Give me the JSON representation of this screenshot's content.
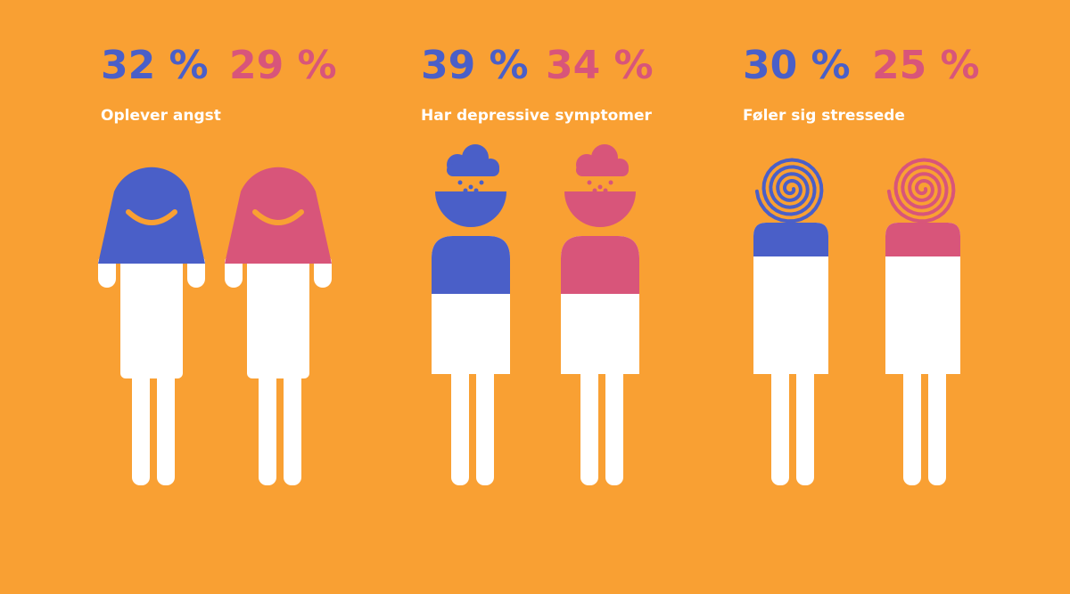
{
  "groups": [
    {
      "values": [
        "32 %",
        "29 %"
      ],
      "label": "Oplever angst"
    },
    {
      "values": [
        "39 %",
        "34 %"
      ],
      "label": "Har depressive symptomer"
    },
    {
      "values": [
        "30 %",
        "25 %"
      ],
      "label": "Føler sig stressede"
    }
  ]
}
